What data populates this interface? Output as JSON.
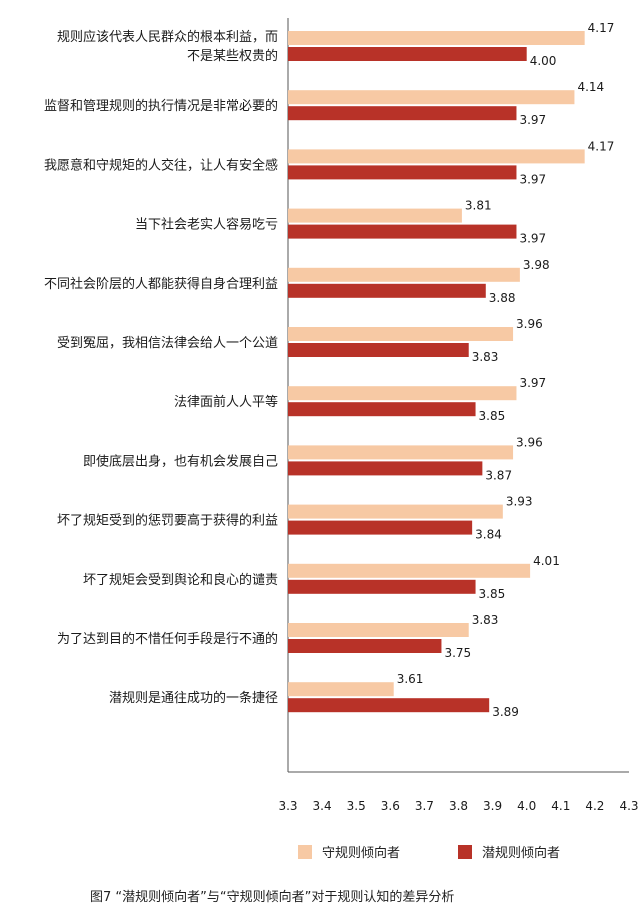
{
  "chart_data": {
    "type": "bar",
    "orientation": "horizontal",
    "categories": [
      [
        "规则应该代表人民群众的根本利益，而",
        "不是某些权贵的"
      ],
      [
        "监督和管理规则的执行情况是非常必要的"
      ],
      [
        "我愿意和守规矩的人交往，让人有安全感"
      ],
      [
        "当下社会老实人容易吃亏"
      ],
      [
        "不同社会阶层的人都能获得自身合理利益"
      ],
      [
        "受到冤屈，我相信法律会给人一个公道"
      ],
      [
        "法律面前人人平等"
      ],
      [
        "即使底层出身，也有机会发展自己"
      ],
      [
        "坏了规矩受到的惩罚要高于获得的利益"
      ],
      [
        "坏了规矩会受到舆论和良心的谴责"
      ],
      [
        "为了达到目的不惜任何手段是行不通的"
      ],
      [
        "潜规则是通往成功的一条捷径"
      ]
    ],
    "series": [
      {
        "name": "守规则倾向者",
        "color": "#f7c9a4",
        "values": [
          4.17,
          4.14,
          4.17,
          3.81,
          3.98,
          3.96,
          3.97,
          3.96,
          3.93,
          4.01,
          3.83,
          3.61
        ],
        "labels": [
          "4.17",
          "4.14",
          "4.17",
          "3.81",
          "3.98",
          "3.96",
          "3.97",
          "3.96",
          "3.93",
          "4.01",
          "3.83",
          "3.61"
        ]
      },
      {
        "name": "潜规则倾向者",
        "color": "#b83228",
        "values": [
          4.0,
          3.97,
          3.97,
          3.97,
          3.88,
          3.83,
          3.85,
          3.87,
          3.84,
          3.85,
          3.75,
          3.89
        ],
        "labels": [
          "4.00",
          "3.97",
          "3.97",
          "3.97",
          "3.88",
          "3.83",
          "3.85",
          "3.87",
          "3.84",
          "3.85",
          "3.75",
          "3.89"
        ]
      }
    ],
    "xlim": [
      3.3,
      4.3
    ],
    "xticks": [
      "3.3",
      "3.4",
      "3.5",
      "3.6",
      "3.7",
      "3.8",
      "3.9",
      "4.0",
      "4.1",
      "4.2",
      "4.3"
    ],
    "grid": false,
    "legend_position": "bottom"
  },
  "caption": "图7    “潜规则倾向者”与“守规则倾向者”对于规则认知的差异分析"
}
